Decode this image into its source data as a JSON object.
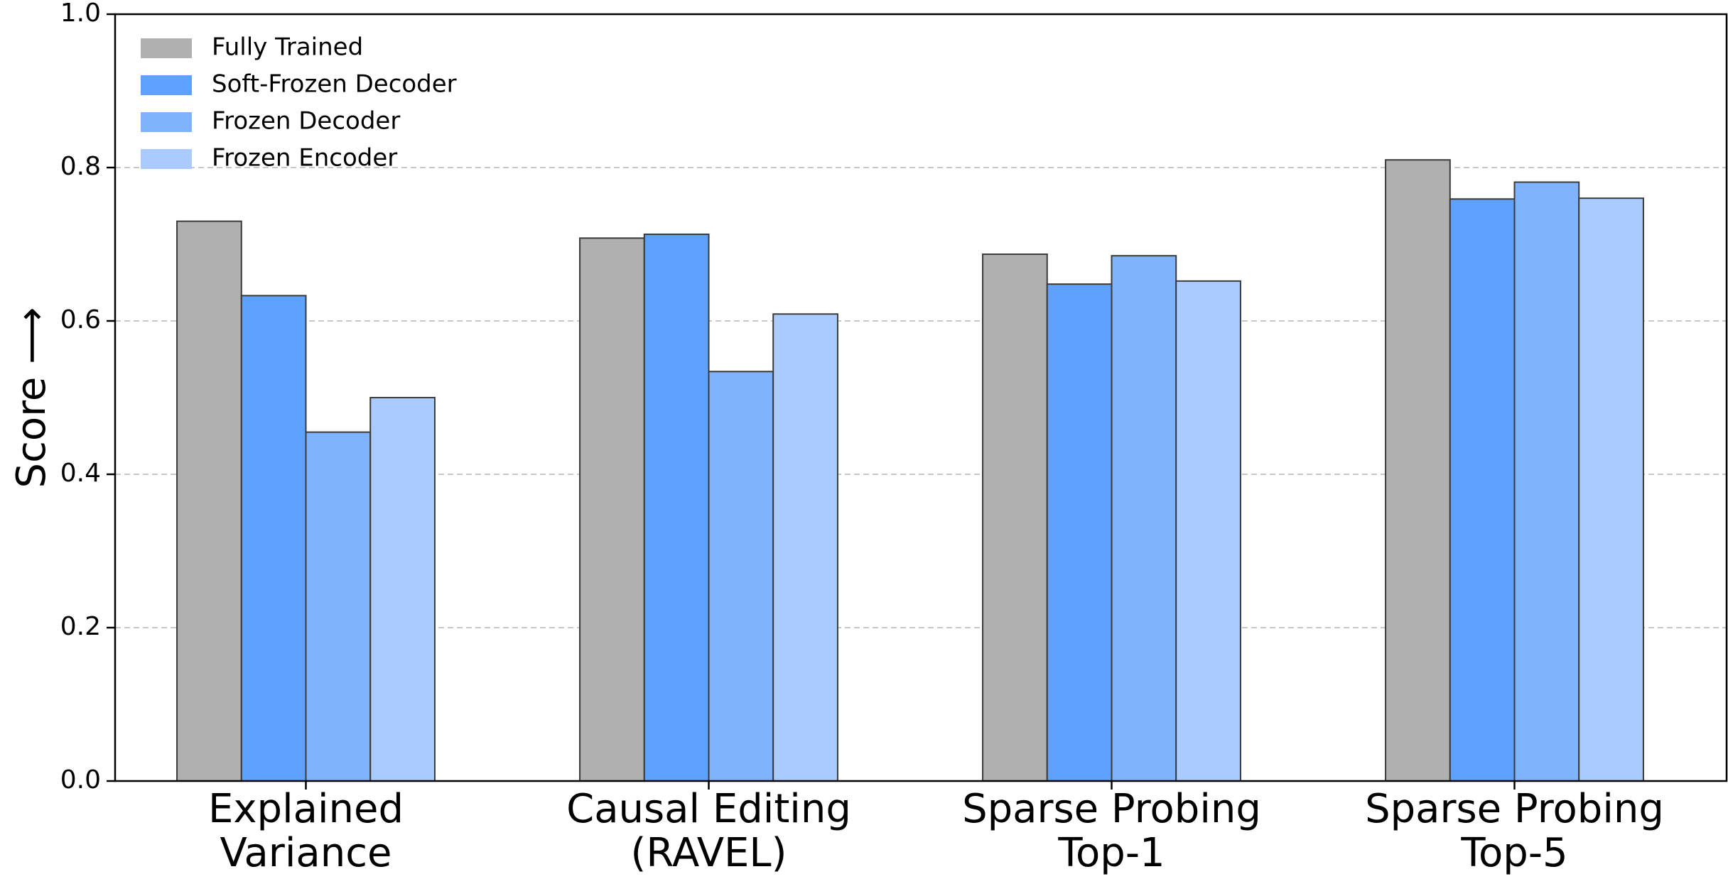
{
  "chart_data": {
    "type": "bar",
    "title": "",
    "xlabel": "",
    "ylabel": "Score ⟶",
    "ylim": [
      0,
      1.0
    ],
    "yticks": [
      "0.0",
      "0.2",
      "0.4",
      "0.6",
      "0.8",
      "1.0"
    ],
    "grid": "horizontal dashed",
    "legend_position": "top-left",
    "categories": [
      [
        "Explained",
        "Variance"
      ],
      [
        "Causal Editing",
        "(RAVEL)"
      ],
      [
        "Sparse Probing",
        "Top-1"
      ],
      [
        "Sparse Probing",
        "Top-5"
      ]
    ],
    "series": [
      {
        "name": "Fully Trained",
        "color": "#b0b0b0",
        "values": [
          0.73,
          0.708,
          0.687,
          0.81
        ]
      },
      {
        "name": "Soft-Frozen Decoder",
        "color": "#5ea1fe",
        "values": [
          0.633,
          0.713,
          0.648,
          0.759
        ]
      },
      {
        "name": "Frozen Decoder",
        "color": "#80b3fe",
        "values": [
          0.455,
          0.534,
          0.685,
          0.781
        ]
      },
      {
        "name": "Frozen Encoder",
        "color": "#a9cbfe",
        "values": [
          0.5,
          0.609,
          0.652,
          0.76
        ]
      }
    ]
  }
}
